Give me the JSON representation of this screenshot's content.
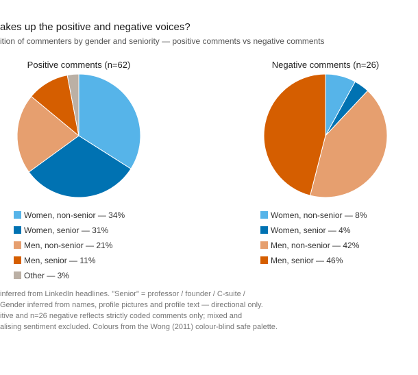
{
  "header": {
    "title": "akes up the positive and negative voices?",
    "subtitle": "ition of commenters by gender and seniority — positive comments vs negative comments"
  },
  "colors": {
    "women_non_senior": "#56B4E9",
    "women_senior": "#0072B2",
    "men_non_senior": "#E69F6F",
    "men_senior": "#D55E00",
    "other": "#BBB0A5"
  },
  "chart_data": [
    {
      "type": "pie",
      "title": "Positive comments (n=62)",
      "slices": [
        {
          "label": "Women, non-senior — 34%",
          "value": 34,
          "color": "#56B4E9"
        },
        {
          "label": "Women, senior — 31%",
          "value": 31,
          "color": "#0072B2"
        },
        {
          "label": "Men, non-senior — 21%",
          "value": 21,
          "color": "#E69F6F"
        },
        {
          "label": "Men, senior — 11%",
          "value": 11,
          "color": "#D55E00"
        },
        {
          "label": "Other — 3%",
          "value": 3,
          "color": "#BBB0A5"
        }
      ],
      "legend_position": "bottom"
    },
    {
      "type": "pie",
      "title": "Negative comments (n=26)",
      "slices": [
        {
          "label": "Women, non-senior — 8%",
          "value": 8,
          "color": "#56B4E9"
        },
        {
          "label": "Women, senior — 4%",
          "value": 4,
          "color": "#0072B2"
        },
        {
          "label": "Men, non-senior — 42%",
          "value": 42,
          "color": "#E69F6F"
        },
        {
          "label": "Men, senior — 46%",
          "value": 46,
          "color": "#D55E00"
        }
      ],
      "legend_position": "bottom"
    }
  ],
  "footnote": {
    "lines": [
      "inferred from LinkedIn headlines. \"Senior\" = professor / founder / C-suite /",
      "Gender inferred from names, profile pictures and profile text — directional only.",
      "itive and n=26 negative reflects strictly coded comments only; mixed and",
      "alising sentiment excluded. Colours from the Wong (2011) colour-blind safe palette."
    ]
  }
}
